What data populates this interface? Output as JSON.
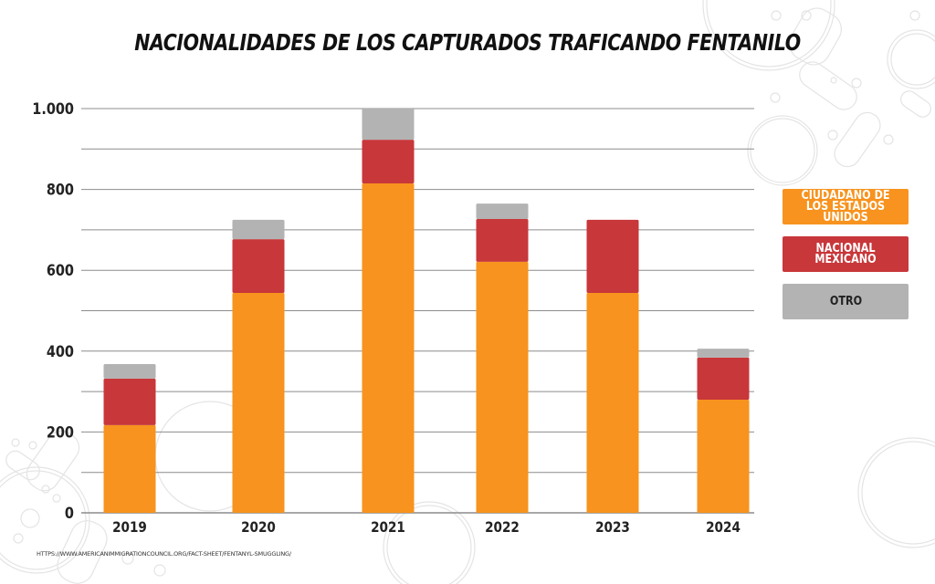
{
  "chart_data": {
    "type": "bar",
    "stacked": true,
    "title": "NACIONALIDADES DE LOS CAPTURADOS TRAFICANDO FENTANILO",
    "xlabel": "",
    "ylabel": "",
    "categories": [
      "2019",
      "2020",
      "2021",
      "2022",
      "2023",
      "2024"
    ],
    "series": [
      {
        "name": "CIUDADANO DE LOS ESTADOS UNIDOS",
        "color": "#F7931E",
        "values": [
          217,
          544,
          815,
          621,
          544,
          280
        ]
      },
      {
        "name": "NACIONAL MEXICANO",
        "color": "#C8373A",
        "values": [
          115,
          133,
          108,
          106,
          181,
          104
        ]
      },
      {
        "name": "OTRO",
        "color": "#B3B3B3",
        "values": [
          36,
          48,
          77,
          38,
          0,
          22
        ]
      }
    ],
    "ylim": [
      0,
      1000
    ],
    "yticks": [
      0,
      200,
      400,
      600,
      800,
      1000
    ],
    "ytick_labels": [
      "0",
      "200",
      "400",
      "600",
      "800",
      "1.000"
    ],
    "minor_gridlines": [
      100,
      300,
      500,
      700,
      900
    ],
    "grid": true,
    "legend_position": "right"
  },
  "legend": {
    "items": [
      {
        "label": "CIUDADANO DE LOS ESTADOS UNIDOS",
        "color": "#F7931E"
      },
      {
        "label": "NACIONAL MEXICANO",
        "color": "#C8373A"
      },
      {
        "label": "OTRO",
        "color": "#B3B3B3"
      }
    ]
  },
  "source": "HTTPS://WWW.AMERICANIMMIGRATIONCOUNCIL.ORG/FACT-SHEET/FENTANYL-SMUGGLING/",
  "colors": {
    "grid": "#8c8c8c",
    "text": "#222222",
    "decoration": "#e6e6e6"
  }
}
